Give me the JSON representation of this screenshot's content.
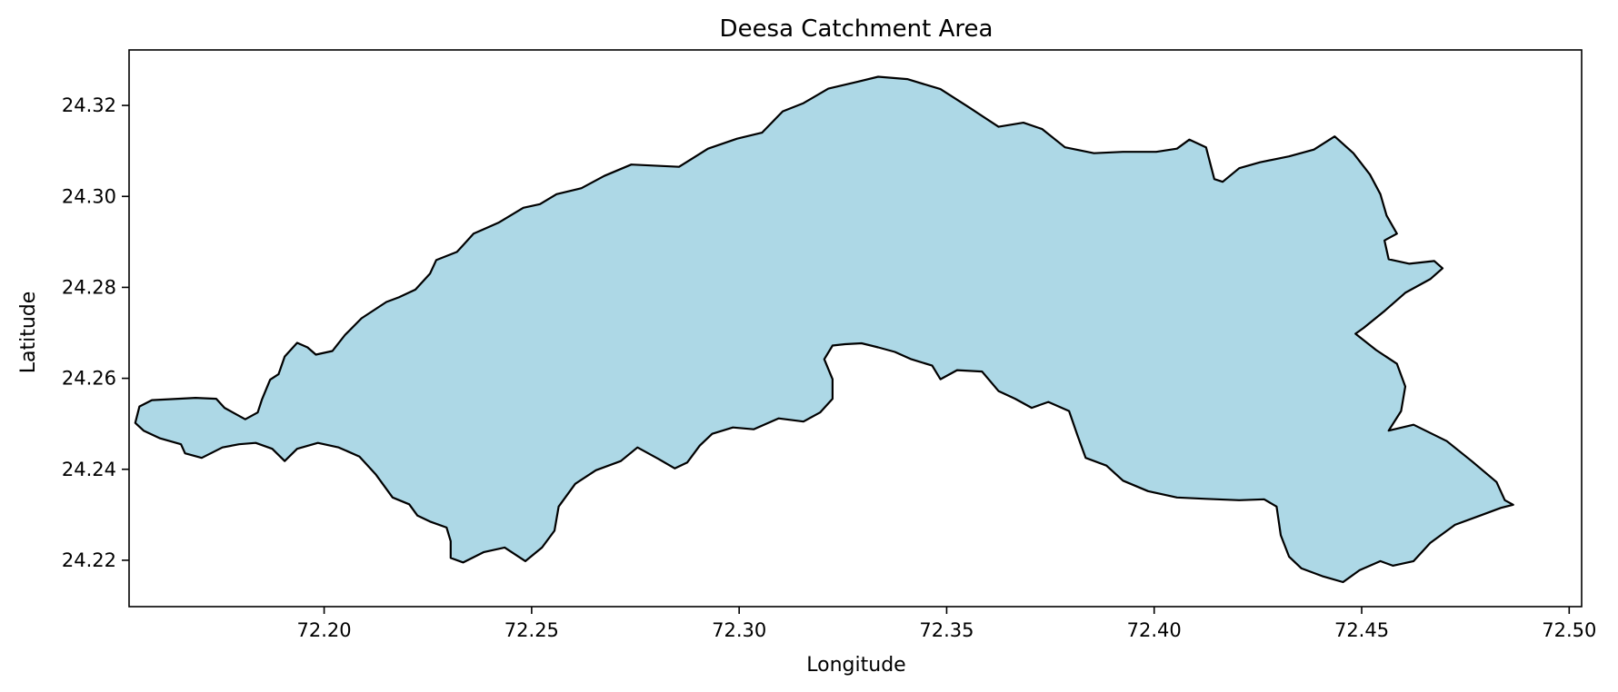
{
  "chart_data": {
    "type": "map",
    "title": "Deesa Catchment Area",
    "xlabel": "Longitude",
    "ylabel": "Latitude",
    "xlim": [
      72.153,
      72.503
    ],
    "ylim": [
      24.2098,
      24.3322
    ],
    "xticks": [
      72.2,
      72.25,
      72.3,
      72.35,
      72.4,
      72.45,
      72.5
    ],
    "xtick_labels": [
      "72.20",
      "72.25",
      "72.30",
      "72.35",
      "72.40",
      "72.45",
      "72.50"
    ],
    "yticks": [
      24.22,
      24.24,
      24.26,
      24.28,
      24.3,
      24.32
    ],
    "ytick_labels": [
      "24.22",
      "24.24",
      "24.26",
      "24.28",
      "24.30",
      "24.32"
    ],
    "grid": false,
    "fill_color": "#add8e6",
    "edge_color": "#000000",
    "boundary": [
      [
        72.169,
        24.2557
      ],
      [
        72.174,
        24.2555
      ],
      [
        72.176,
        24.2535
      ],
      [
        72.181,
        24.251
      ],
      [
        72.184,
        24.2525
      ],
      [
        72.185,
        24.2553
      ],
      [
        72.187,
        24.2597
      ],
      [
        72.189,
        24.2609
      ],
      [
        72.1905,
        24.2648
      ],
      [
        72.1935,
        24.2678
      ],
      [
        72.196,
        24.2668
      ],
      [
        72.198,
        24.2652
      ],
      [
        72.202,
        24.266
      ],
      [
        72.205,
        24.2695
      ],
      [
        72.209,
        24.2732
      ],
      [
        72.215,
        24.2768
      ],
      [
        72.218,
        24.2778
      ],
      [
        72.222,
        24.2795
      ],
      [
        72.2255,
        24.283
      ],
      [
        72.227,
        24.286
      ],
      [
        72.232,
        24.2878
      ],
      [
        72.236,
        24.2918
      ],
      [
        72.242,
        24.2942
      ],
      [
        72.248,
        24.2975
      ],
      [
        72.252,
        24.2983
      ],
      [
        72.256,
        24.3005
      ],
      [
        72.262,
        24.3018
      ],
      [
        72.2675,
        24.3045
      ],
      [
        72.274,
        24.307
      ],
      [
        72.2855,
        24.3065
      ],
      [
        72.2925,
        24.3105
      ],
      [
        72.2995,
        24.3127
      ],
      [
        72.3055,
        24.314
      ],
      [
        72.3105,
        24.3187
      ],
      [
        72.3155,
        24.3205
      ],
      [
        72.3215,
        24.3237
      ],
      [
        72.3285,
        24.3252
      ],
      [
        72.3335,
        24.3263
      ],
      [
        72.3405,
        24.3258
      ],
      [
        72.3485,
        24.3236
      ],
      [
        72.3555,
        24.3195
      ],
      [
        72.3625,
        24.3153
      ],
      [
        72.3685,
        24.3162
      ],
      [
        72.373,
        24.3148
      ],
      [
        72.3785,
        24.3108
      ],
      [
        72.3855,
        24.3095
      ],
      [
        72.3925,
        24.3098
      ],
      [
        72.4005,
        24.3098
      ],
      [
        72.4055,
        24.3105
      ],
      [
        72.4085,
        24.3125
      ],
      [
        72.4125,
        24.3108
      ],
      [
        72.4145,
        24.3038
      ],
      [
        72.4165,
        24.3032
      ],
      [
        72.4205,
        24.3062
      ],
      [
        72.4255,
        24.3075
      ],
      [
        72.4325,
        24.3088
      ],
      [
        72.4385,
        24.3103
      ],
      [
        72.4435,
        24.3132
      ],
      [
        72.448,
        24.3095
      ],
      [
        72.452,
        24.3048
      ],
      [
        72.4545,
        24.3005
      ],
      [
        72.456,
        24.2958
      ],
      [
        72.4585,
        24.2918
      ],
      [
        72.4555,
        24.2903
      ],
      [
        72.4565,
        24.2862
      ],
      [
        72.4615,
        24.2852
      ],
      [
        72.4675,
        24.2858
      ],
      [
        72.4695,
        24.2842
      ],
      [
        72.4665,
        24.2818
      ],
      [
        72.4605,
        24.2788
      ],
      [
        72.4555,
        24.2748
      ],
      [
        72.4505,
        24.2711
      ],
      [
        72.4485,
        24.2698
      ],
      [
        72.4535,
        24.2662
      ],
      [
        72.4585,
        24.2632
      ],
      [
        72.4605,
        24.2582
      ],
      [
        72.4595,
        24.2528
      ],
      [
        72.4565,
        24.2485
      ],
      [
        72.4625,
        24.2498
      ],
      [
        72.4705,
        24.2462
      ],
      [
        72.4765,
        24.2418
      ],
      [
        72.4825,
        24.2372
      ],
      [
        72.4845,
        24.2332
      ],
      [
        72.4865,
        24.2322
      ],
      [
        72.4835,
        24.2315
      ],
      [
        72.4785,
        24.2298
      ],
      [
        72.4725,
        24.2278
      ],
      [
        72.4665,
        24.2238
      ],
      [
        72.4625,
        24.2198
      ],
      [
        72.4575,
        24.2188
      ],
      [
        72.4545,
        24.2198
      ],
      [
        72.4495,
        24.2178
      ],
      [
        72.4455,
        24.2152
      ],
      [
        72.4405,
        24.2165
      ],
      [
        72.4355,
        24.2182
      ],
      [
        72.4325,
        24.2208
      ],
      [
        72.4305,
        24.2255
      ],
      [
        72.4295,
        24.2318
      ],
      [
        72.4265,
        24.2334
      ],
      [
        72.4205,
        24.2332
      ],
      [
        72.4125,
        24.2335
      ],
      [
        72.4055,
        24.2338
      ],
      [
        72.3985,
        24.2352
      ],
      [
        72.3925,
        24.2375
      ],
      [
        72.3885,
        24.2408
      ],
      [
        72.3835,
        24.2425
      ],
      [
        72.3815,
        24.2475
      ],
      [
        72.3795,
        24.2528
      ],
      [
        72.3745,
        24.2548
      ],
      [
        72.3705,
        24.2535
      ],
      [
        72.3665,
        24.2555
      ],
      [
        72.3625,
        24.2572
      ],
      [
        72.3585,
        24.2615
      ],
      [
        72.3525,
        24.2618
      ],
      [
        72.3485,
        24.2598
      ],
      [
        72.3465,
        24.2628
      ],
      [
        72.3415,
        24.2642
      ],
      [
        72.3375,
        24.2658
      ],
      [
        72.3335,
        24.2668
      ],
      [
        72.3295,
        24.2677
      ],
      [
        72.3255,
        24.2675
      ],
      [
        72.3225,
        24.2672
      ],
      [
        72.3205,
        24.2642
      ],
      [
        72.3225,
        24.2598
      ],
      [
        72.3225,
        24.2555
      ],
      [
        72.3195,
        24.2525
      ],
      [
        72.3155,
        24.2505
      ],
      [
        72.3095,
        24.2512
      ],
      [
        72.3035,
        24.2488
      ],
      [
        72.2985,
        24.2492
      ],
      [
        72.2935,
        24.2478
      ],
      [
        72.2905,
        24.2452
      ],
      [
        72.2875,
        24.2415
      ],
      [
        72.2845,
        24.2402
      ],
      [
        72.2805,
        24.2423
      ],
      [
        72.2755,
        24.2448
      ],
      [
        72.2715,
        24.2418
      ],
      [
        72.2655,
        24.2398
      ],
      [
        72.2605,
        24.2368
      ],
      [
        72.2565,
        24.2318
      ],
      [
        72.2555,
        24.2265
      ],
      [
        72.2525,
        24.2228
      ],
      [
        72.2485,
        24.2198
      ],
      [
        72.2435,
        24.2228
      ],
      [
        72.2385,
        24.2218
      ],
      [
        72.2335,
        24.2195
      ],
      [
        72.2305,
        24.2205
      ],
      [
        72.2305,
        24.2242
      ],
      [
        72.2295,
        24.2272
      ],
      [
        72.2255,
        24.2285
      ],
      [
        72.2225,
        24.2298
      ],
      [
        72.2205,
        24.2323
      ],
      [
        72.2165,
        24.2338
      ],
      [
        72.2125,
        24.2388
      ],
      [
        72.2085,
        24.2428
      ],
      [
        72.2035,
        24.2448
      ],
      [
        72.1985,
        24.2458
      ],
      [
        72.1935,
        24.2445
      ],
      [
        72.1905,
        24.2418
      ],
      [
        72.1875,
        24.2445
      ],
      [
        72.1835,
        24.2458
      ],
      [
        72.1795,
        24.2455
      ],
      [
        72.1755,
        24.2448
      ],
      [
        72.1705,
        24.2425
      ],
      [
        72.1665,
        24.2435
      ],
      [
        72.1655,
        24.2455
      ],
      [
        72.1605,
        24.2468
      ],
      [
        72.1565,
        24.2485
      ],
      [
        72.1545,
        24.2502
      ],
      [
        72.1555,
        24.2538
      ],
      [
        72.1585,
        24.2552
      ]
    ]
  }
}
